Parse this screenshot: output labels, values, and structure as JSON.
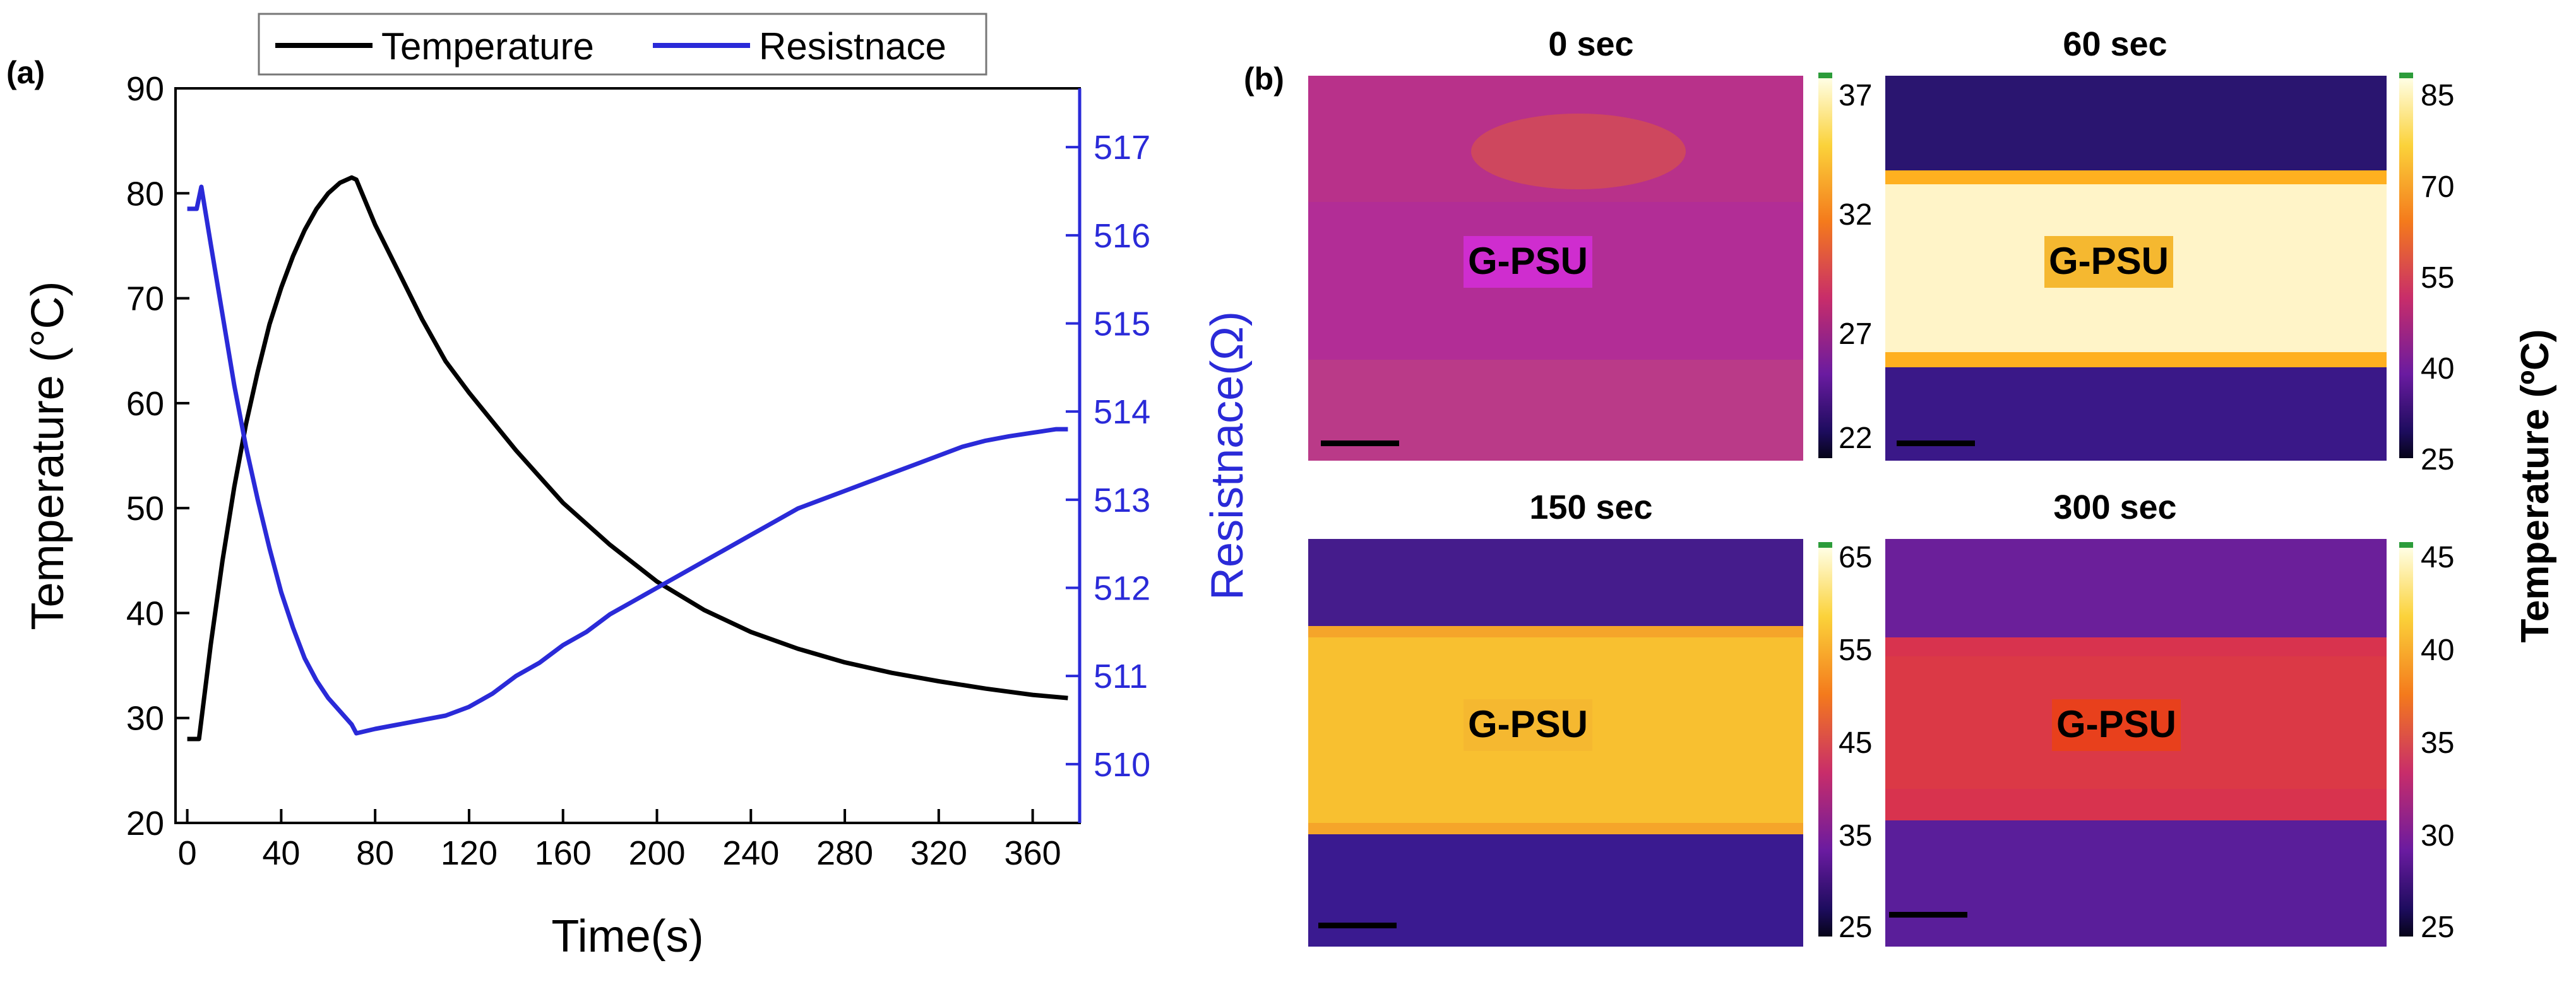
{
  "panel_a": {
    "tag": "(a)",
    "chart_data": {
      "type": "line",
      "xlabel": "Time(s)",
      "ylabel": "Temperature (°C)",
      "y2label": "Resistnace(Ω)",
      "xlim": [
        -5,
        380
      ],
      "ylim": [
        20,
        90
      ],
      "y2lim": [
        509.333,
        517.667
      ],
      "x_ticks": [
        0,
        40,
        80,
        120,
        160,
        200,
        240,
        280,
        320,
        360
      ],
      "y_ticks": [
        20,
        30,
        40,
        50,
        60,
        70,
        80,
        90
      ],
      "y2_ticks": [
        510,
        511,
        512,
        513,
        514,
        515,
        516,
        517
      ],
      "legend_position": "top",
      "series": [
        {
          "name": "Temperature",
          "axis": "left",
          "color": "#000000",
          "x": [
            0,
            5,
            10,
            15,
            20,
            25,
            30,
            35,
            40,
            45,
            50,
            55,
            60,
            65,
            70,
            72,
            80,
            90,
            100,
            110,
            120,
            140,
            160,
            180,
            200,
            220,
            240,
            260,
            280,
            300,
            320,
            340,
            360,
            375
          ],
          "y": [
            28,
            28,
            37,
            45,
            52,
            58,
            63,
            67.5,
            71,
            74,
            76.5,
            78.5,
            80,
            81,
            81.5,
            81.3,
            77,
            72.5,
            68,
            64,
            61,
            55.5,
            50.5,
            46.5,
            43,
            40.3,
            38.2,
            36.6,
            35.3,
            34.3,
            33.5,
            32.8,
            32.2,
            31.9
          ]
        },
        {
          "name": "Resistnace",
          "axis": "right",
          "color": "#2a2ad8",
          "x": [
            0,
            4,
            6,
            10,
            15,
            20,
            25,
            30,
            35,
            40,
            45,
            50,
            55,
            60,
            65,
            70,
            72,
            80,
            90,
            100,
            110,
            120,
            130,
            140,
            150,
            160,
            170,
            180,
            190,
            200,
            210,
            220,
            230,
            240,
            250,
            260,
            270,
            280,
            290,
            300,
            310,
            320,
            330,
            340,
            350,
            360,
            370,
            375
          ],
          "y": [
            516.3,
            516.3,
            516.55,
            515.9,
            515.1,
            514.3,
            513.6,
            513,
            512.45,
            511.95,
            511.55,
            511.2,
            510.95,
            510.75,
            510.6,
            510.45,
            510.35,
            510.4,
            510.45,
            510.5,
            510.55,
            510.65,
            510.8,
            511.0,
            511.15,
            511.35,
            511.5,
            511.7,
            511.85,
            512.0,
            512.15,
            512.3,
            512.45,
            512.6,
            512.75,
            512.9,
            513.0,
            513.1,
            513.2,
            513.3,
            513.4,
            513.5,
            513.6,
            513.67,
            513.72,
            513.76,
            513.8,
            513.8
          ]
        }
      ]
    }
  },
  "panel_b": {
    "tag": "(b)",
    "colorbar_axis_title": "Temperature (ºC)",
    "images": [
      {
        "title": "0 sec",
        "label": "G-PSU",
        "label_bg": "#cf2dcf",
        "colorbar_ticks": [
          "37",
          "32",
          "27",
          "22"
        ],
        "colors": {
          "top": "#b8318a",
          "band": "#b22d96",
          "bottom": "#ba3a88",
          "hot": "#e05a3a"
        }
      },
      {
        "title": "60 sec",
        "label": "G-PSU",
        "label_bg": "#f5b830",
        "colorbar_ticks": [
          "85",
          "70",
          "55",
          "40",
          "25"
        ],
        "colors": {
          "top": "#2a1570",
          "band": "#fff4c8",
          "bottom": "#3a1888",
          "hot": "#ffb020"
        }
      },
      {
        "title": "150 sec",
        "label": "G-PSU",
        "label_bg": "#f5b830",
        "colorbar_ticks": [
          "65",
          "55",
          "45",
          "35",
          "25"
        ],
        "colors": {
          "top": "#451c8c",
          "band": "#f8c030",
          "bottom": "#3a1a90",
          "hot": "#f5a52a"
        }
      },
      {
        "title": "300 sec",
        "label": "G-PSU",
        "label_bg": "#e8401c",
        "colorbar_ticks": [
          "45",
          "40",
          "35",
          "30",
          "25"
        ],
        "colors": {
          "top": "#6b1f9a",
          "band": "#d8334e",
          "bottom": "#5a1e9a",
          "hot": "#e2453a"
        }
      }
    ]
  }
}
